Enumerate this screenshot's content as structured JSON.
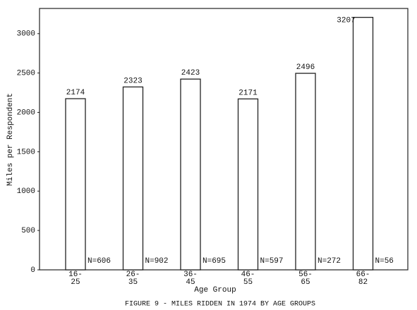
{
  "chart_data": {
    "type": "bar",
    "title": "FIGURE 9 - MILES RIDDEN IN 1974 BY AGE GROUPS",
    "x_label": "Age Group",
    "y_label": "Miles per Respondent",
    "categories": [
      [
        "16-",
        "25"
      ],
      [
        "26-",
        "35"
      ],
      [
        "36-",
        "45"
      ],
      [
        "46-",
        "55"
      ],
      [
        "56-",
        "65"
      ],
      [
        "66-",
        "82"
      ]
    ],
    "values": [
      2174,
      2323,
      2423,
      2171,
      2496,
      3207
    ],
    "annotations": [
      "N=606",
      "N=902",
      "N=695",
      "N=597",
      "N=272",
      "N=56"
    ],
    "color": "#ffffff",
    "ylim": [
      0,
      3320
    ],
    "yticks": [
      0,
      500,
      1000,
      1500,
      2000,
      2500,
      3000
    ],
    "grid": false
  }
}
